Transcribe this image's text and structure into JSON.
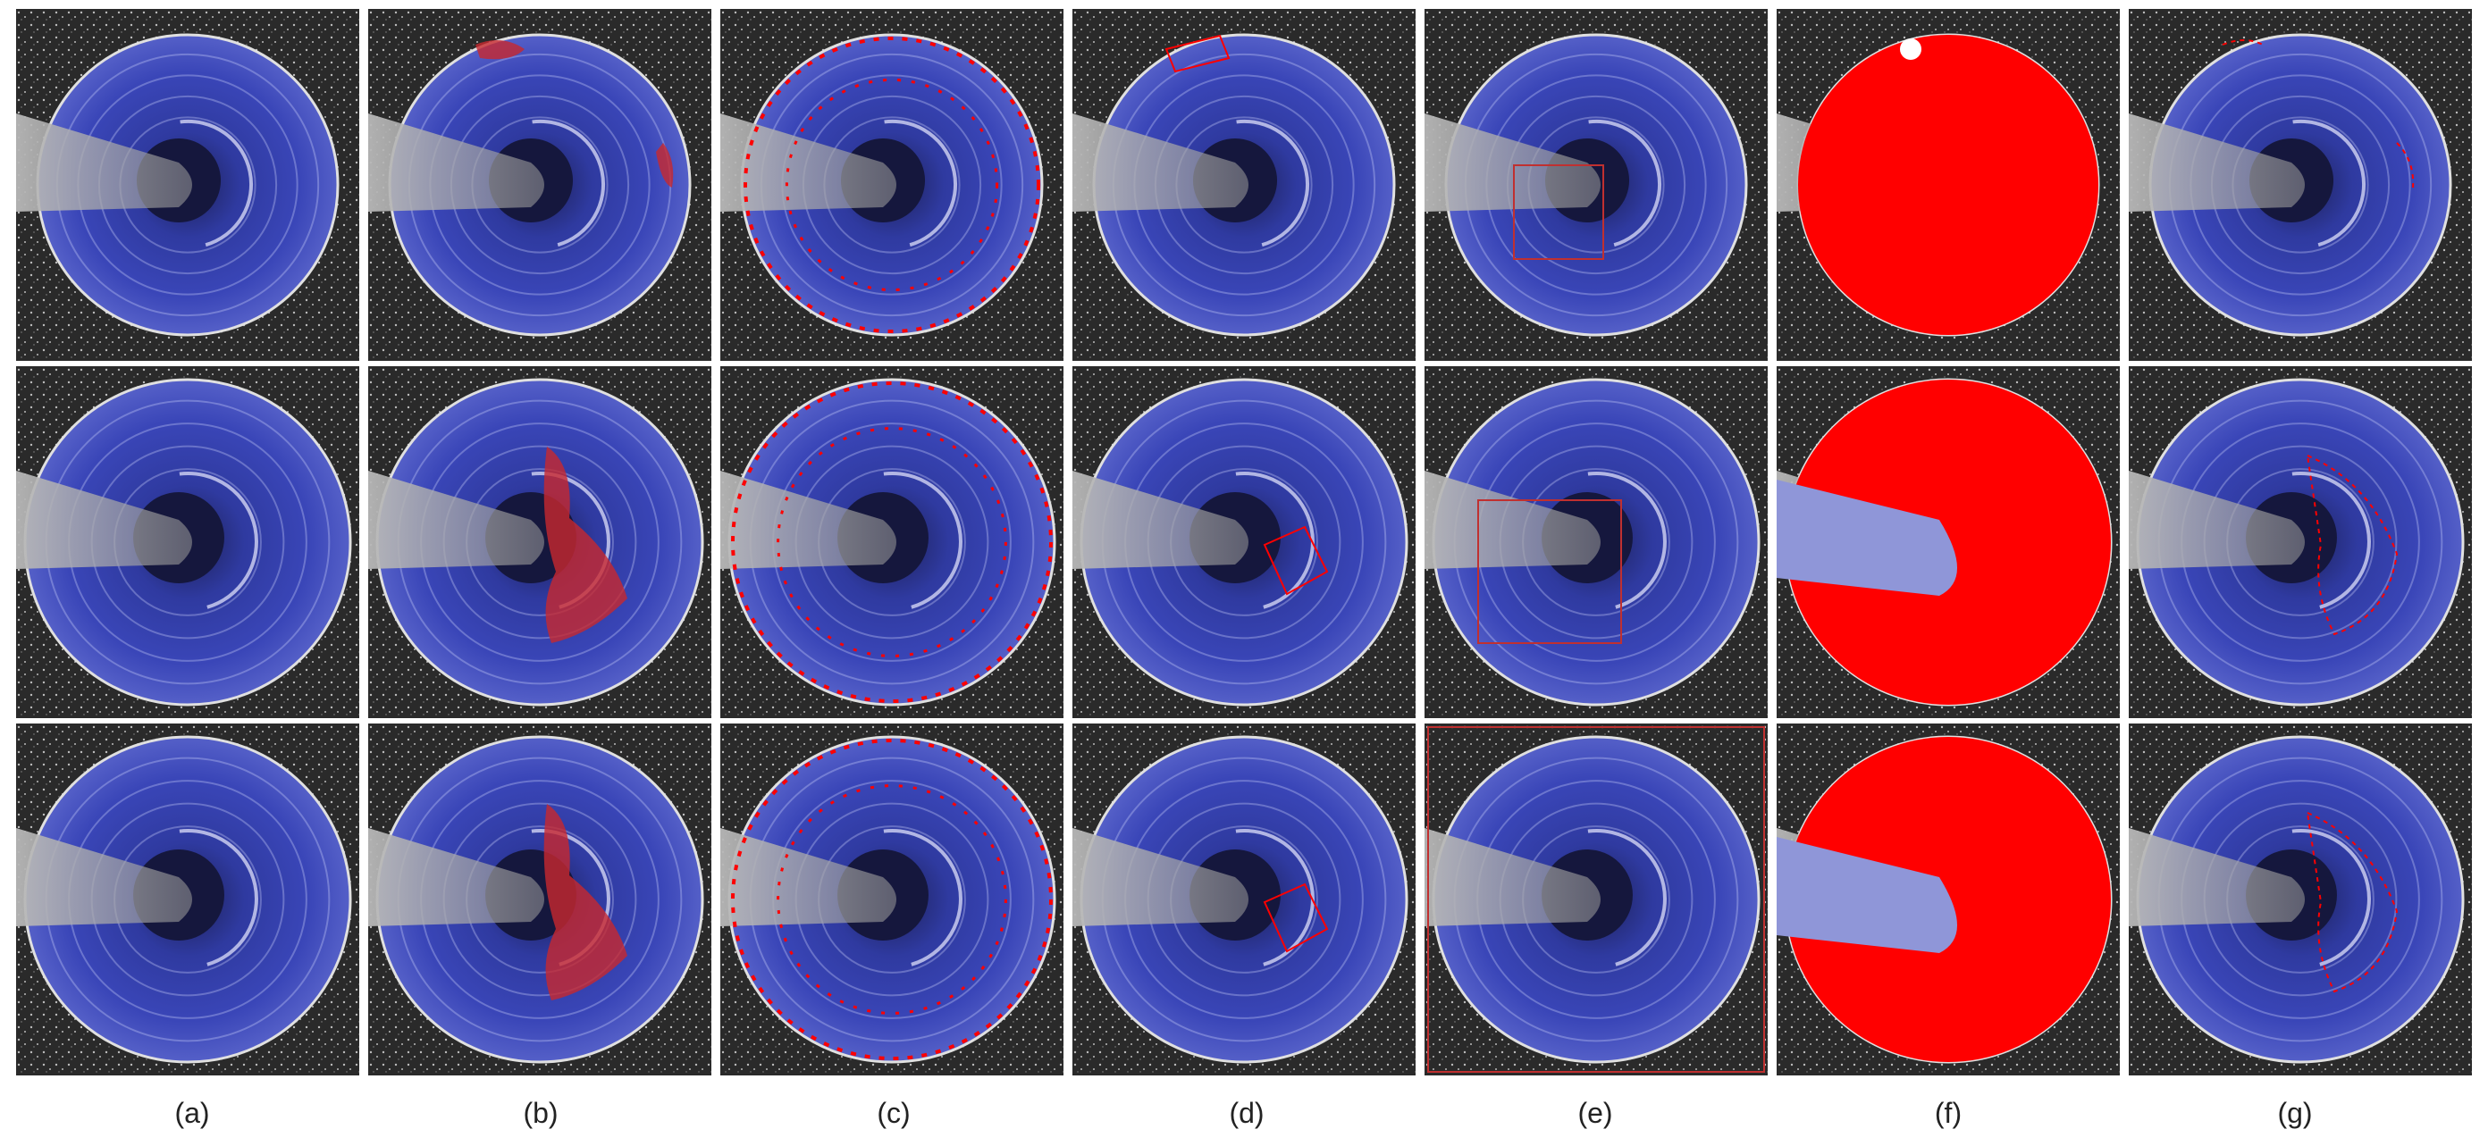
{
  "figure": {
    "column_labels": [
      "(a)",
      "(b)",
      "(c)",
      "(d)",
      "(e)",
      "(f)",
      "(g)"
    ],
    "rows": 3,
    "colors": {
      "background": "#ffffff",
      "tissue_blue": "#3a46b8",
      "tissue_highlight": "#c9cdfa",
      "segmentation_red": "#ff0000",
      "overlay_red": "#c8282e",
      "probe_gray": "#9a9a9a",
      "surround_dark": "#2a2a2a"
    }
  }
}
